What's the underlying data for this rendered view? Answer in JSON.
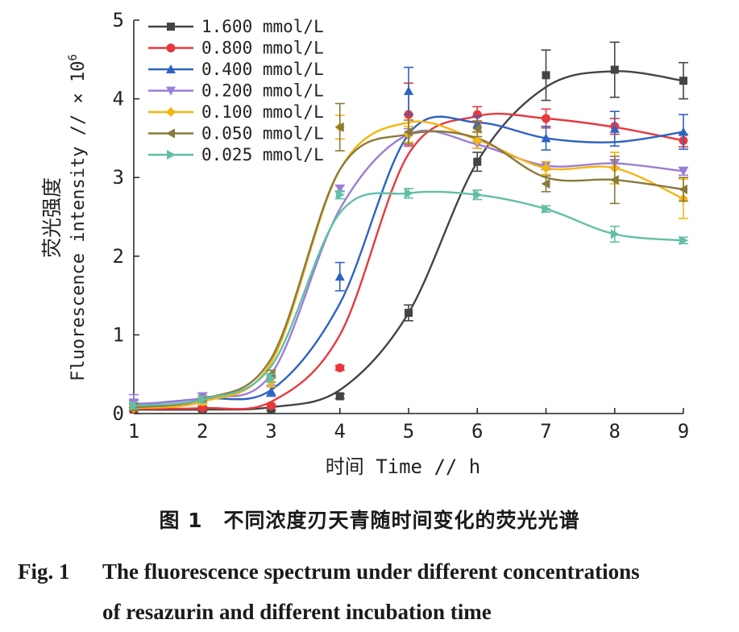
{
  "chart_data": {
    "type": "line",
    "xlabel": "时间 Time // h",
    "ylabel_cn": "荧光强度",
    "ylabel_en": "Fluorescence intensity // × 10",
    "ylabel_exp": "6",
    "xlim": [
      1,
      9
    ],
    "ylim": [
      0,
      5
    ],
    "x_ticks": [
      "1",
      "2",
      "3",
      "4",
      "5",
      "6",
      "7",
      "8",
      "9"
    ],
    "y_ticks": [
      "0",
      "1",
      "2",
      "3",
      "4",
      "5"
    ],
    "grid": false,
    "legend_position": "top-left",
    "x": [
      1,
      2,
      3,
      4,
      5,
      6,
      7,
      8,
      9
    ],
    "series": [
      {
        "name": "1.600 mmol/L",
        "color": "#444444",
        "marker": "square",
        "values": [
          0.05,
          0.05,
          0.06,
          0.22,
          1.28,
          3.2,
          4.3,
          4.37,
          4.23
        ],
        "errors": [
          0.02,
          0.02,
          0.02,
          0.03,
          0.1,
          0.12,
          0.32,
          0.35,
          0.23
        ],
        "fit_curve": [
          0.05,
          0.05,
          0.08,
          0.3,
          1.28,
          3.2,
          4.15,
          4.35,
          4.23
        ]
      },
      {
        "name": "0.800 mmol/L",
        "color": "#e8383d",
        "marker": "circle",
        "values": [
          0.06,
          0.07,
          0.1,
          0.58,
          3.8,
          3.8,
          3.75,
          3.65,
          3.47
        ],
        "errors": [
          0.02,
          0.02,
          0.02,
          0.03,
          0.4,
          0.1,
          0.12,
          0.1,
          0.08
        ],
        "fit_curve": [
          0.06,
          0.07,
          0.15,
          1.0,
          3.3,
          3.78,
          3.75,
          3.64,
          3.47
        ]
      },
      {
        "name": "0.400 mmol/L",
        "color": "#2e62c2",
        "marker": "triangle-up",
        "values": [
          0.12,
          0.2,
          0.28,
          1.74,
          4.1,
          3.68,
          3.5,
          3.62,
          3.58
        ],
        "errors": [
          0.05,
          0.06,
          0.06,
          0.18,
          0.3,
          0.1,
          0.15,
          0.22,
          0.22
        ],
        "fit_curve": [
          0.11,
          0.19,
          0.3,
          1.4,
          3.55,
          3.7,
          3.5,
          3.45,
          3.58
        ]
      },
      {
        "name": "0.200 mmol/L",
        "color": "#9b7ed6",
        "marker": "triangle-down",
        "values": [
          0.14,
          0.22,
          0.42,
          2.86,
          3.52,
          3.42,
          3.15,
          3.18,
          3.08
        ],
        "errors": [
          0.1,
          0.04,
          0.06,
          0.04,
          0.1,
          0.05,
          0.05,
          0.05,
          0.05
        ],
        "fit_curve": [
          0.12,
          0.2,
          0.5,
          2.6,
          3.55,
          3.42,
          3.15,
          3.18,
          3.08
        ]
      },
      {
        "name": "0.100 mmol/L",
        "color": "#f5b512",
        "marker": "diamond",
        "values": [
          0.07,
          0.15,
          0.4,
          3.64,
          3.55,
          3.47,
          3.12,
          3.12,
          2.73
        ],
        "errors": [
          0.03,
          0.04,
          0.06,
          0.15,
          0.1,
          0.1,
          0.08,
          0.2,
          0.25
        ],
        "fit_curve": [
          0.07,
          0.15,
          0.65,
          3.1,
          3.7,
          3.48,
          3.12,
          3.12,
          2.73
        ]
      },
      {
        "name": "0.050 mmol/L",
        "color": "#8a7a3a",
        "marker": "triangle-left",
        "values": [
          0.08,
          0.18,
          0.5,
          3.64,
          3.58,
          3.62,
          2.92,
          2.97,
          2.85
        ],
        "errors": [
          0.04,
          0.04,
          0.05,
          0.3,
          0.15,
          0.1,
          0.1,
          0.3,
          0.15
        ],
        "fit_curve": [
          0.08,
          0.18,
          0.7,
          3.1,
          3.55,
          3.5,
          3.0,
          2.97,
          2.85
        ]
      },
      {
        "name": "0.025 mmol/L",
        "color": "#62bfa7",
        "marker": "triangle-right",
        "values": [
          0.1,
          0.18,
          0.45,
          2.78,
          2.8,
          2.78,
          2.6,
          2.28,
          2.2
        ],
        "errors": [
          0.04,
          0.04,
          0.05,
          0.05,
          0.06,
          0.06,
          0.04,
          0.1,
          0.04
        ],
        "fit_curve": [
          0.1,
          0.18,
          0.6,
          2.55,
          2.8,
          2.78,
          2.6,
          2.28,
          2.2
        ]
      }
    ]
  },
  "caption": {
    "cn": "图 1　不同浓度刃天青随时间变化的荧光光谱",
    "en_num": "Fig. 1",
    "en_line1": "The fluorescence spectrum under different concentrations",
    "en_line2": "of resazurin and different incubation time"
  }
}
